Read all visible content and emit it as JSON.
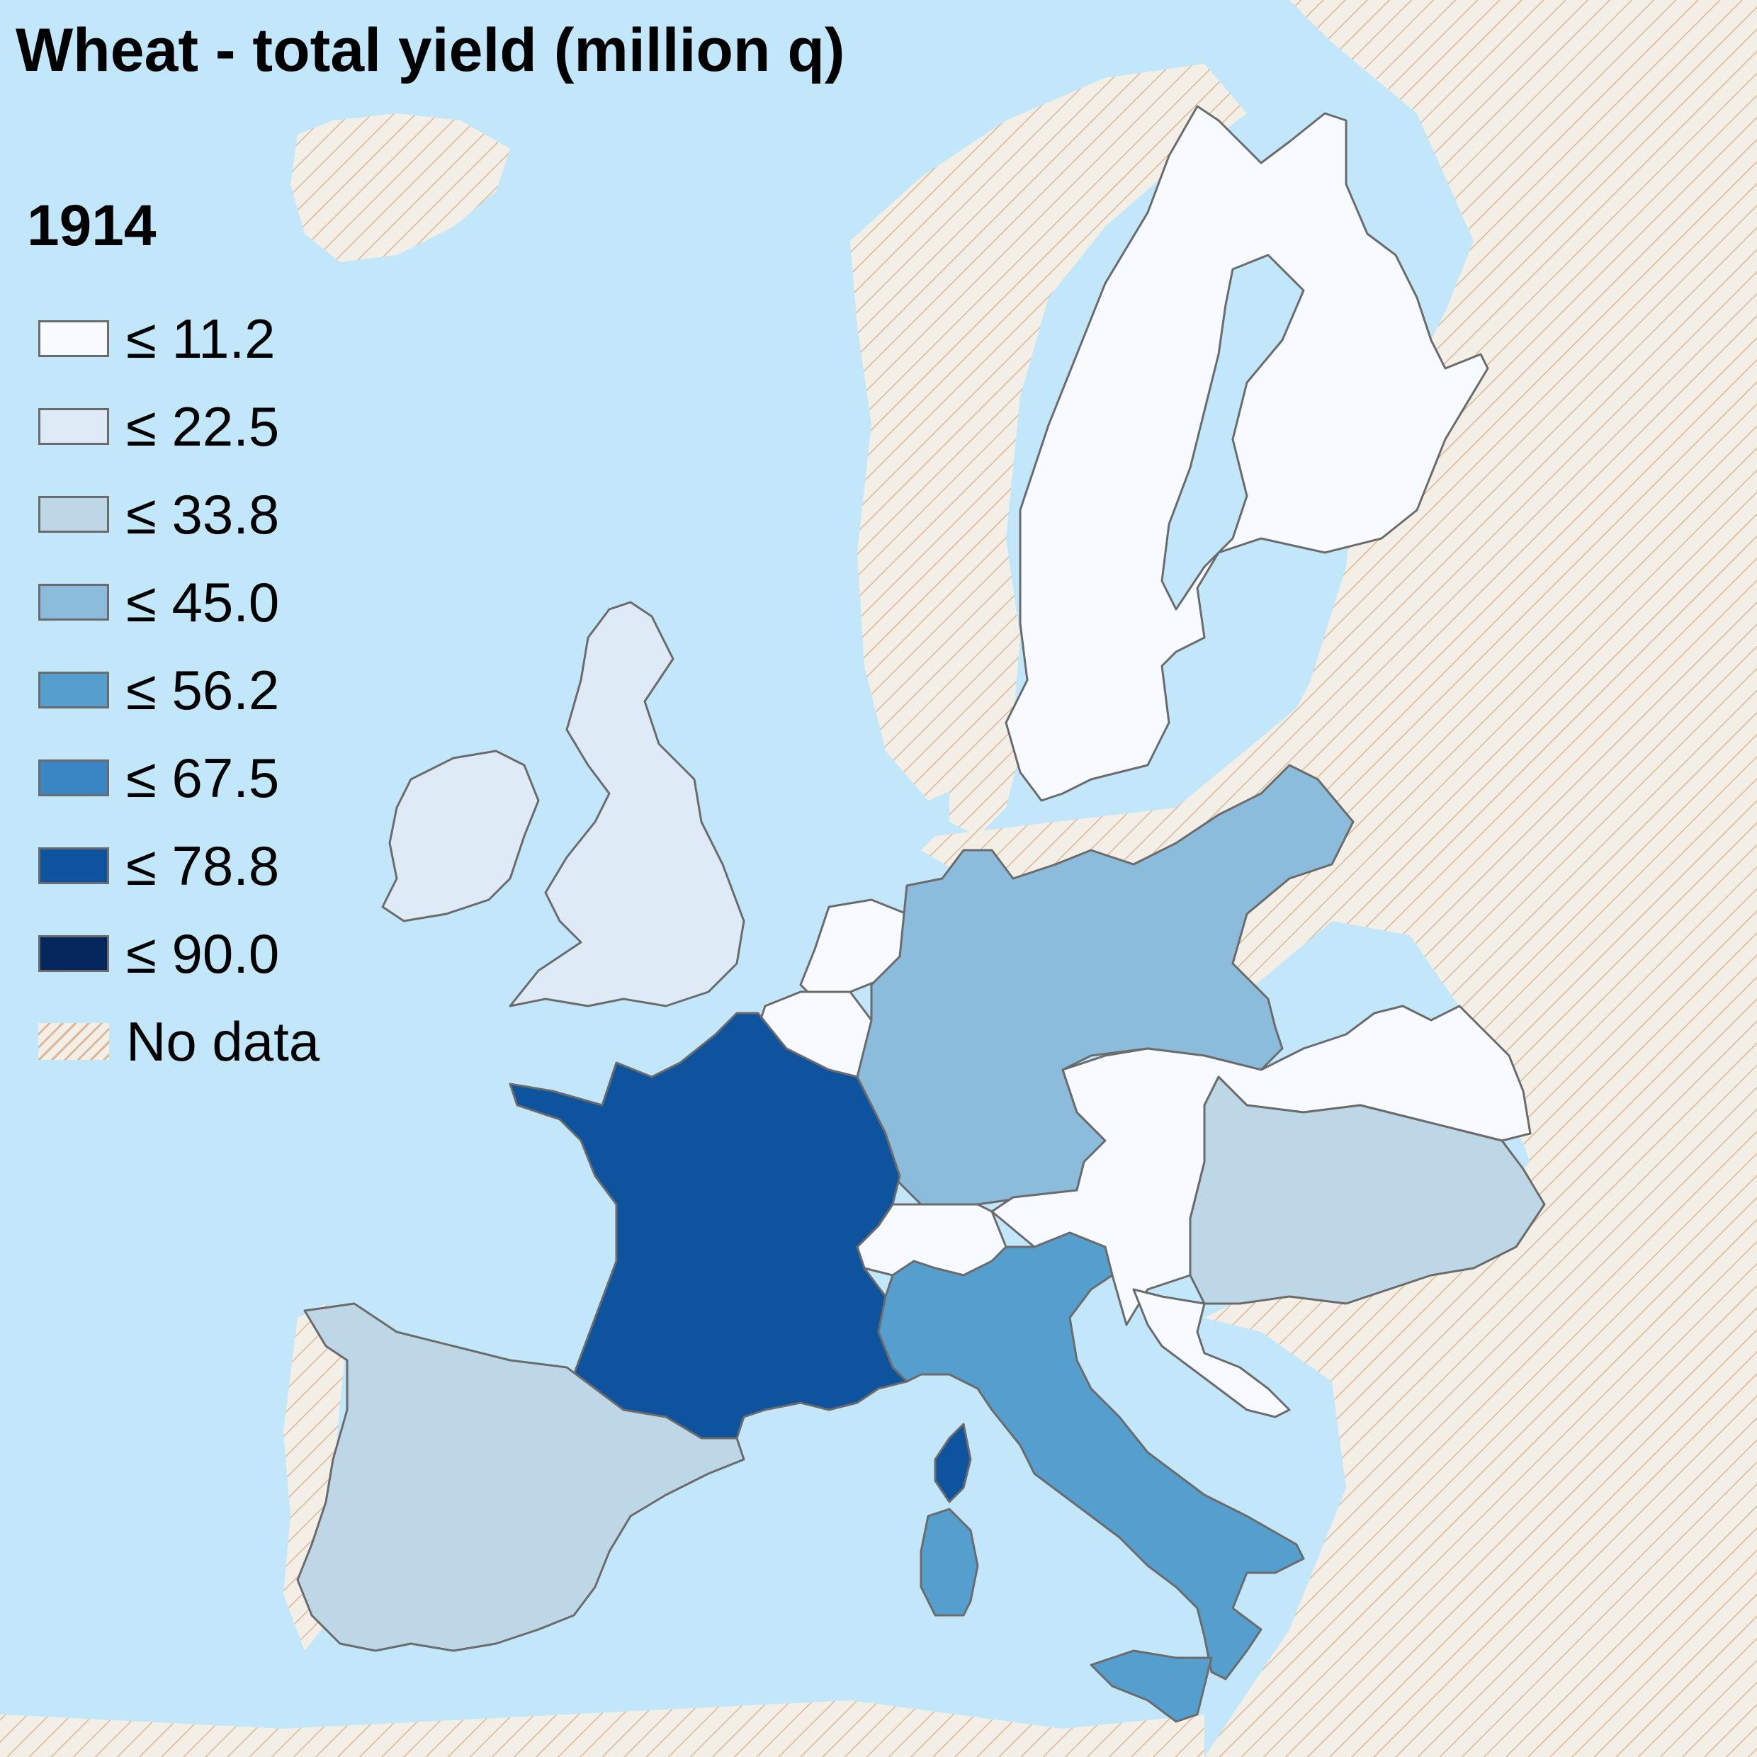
{
  "title": "Wheat - total yield (million q)",
  "year": "1914",
  "legend": {
    "items": [
      {
        "label": "≤ 11.2",
        "color": "#f7fbff"
      },
      {
        "label": "≤ 22.5",
        "color": "#deebf7"
      },
      {
        "label": "≤ 33.8",
        "color": "#bdd7e7"
      },
      {
        "label": "≤ 45.0",
        "color": "#8bbcdb"
      },
      {
        "label": "≤ 56.2",
        "color": "#559fce"
      },
      {
        "label": "≤ 67.5",
        "color": "#3a85c4"
      },
      {
        "label": "≤ 78.8",
        "color": "#0d539e"
      },
      {
        "label": "≤ 90.0",
        "color": "#04265c"
      }
    ],
    "no_data_label": "No data"
  },
  "colors": {
    "sea": "#c2e7fb",
    "no_data_fill": "#f3efe6",
    "no_data_hatch": "#d9b89a",
    "border": "#6b6b6b"
  },
  "regions": [
    {
      "name": "sweden-norway-finland",
      "class": "≤ 11.2"
    },
    {
      "name": "united-kingdom-ireland",
      "class": "≤ 22.5"
    },
    {
      "name": "netherlands",
      "class": "≤ 11.2"
    },
    {
      "name": "belgium",
      "class": "≤ 11.2"
    },
    {
      "name": "germany",
      "class": "≤ 45.0"
    },
    {
      "name": "austria",
      "class": "≤ 11.2"
    },
    {
      "name": "switzerland",
      "class": "≤ 11.2"
    },
    {
      "name": "hungary",
      "class": "≤ 33.8"
    },
    {
      "name": "france",
      "class": "≤ 78.8"
    },
    {
      "name": "corsica",
      "class": "≤ 78.8"
    },
    {
      "name": "spain",
      "class": "≤ 33.8"
    },
    {
      "name": "italy",
      "class": "≤ 56.2"
    },
    {
      "name": "sardinia",
      "class": "≤ 56.2"
    },
    {
      "name": "sicily",
      "class": "≤ 56.2"
    },
    {
      "name": "croatia-dalmatia",
      "class": "≤ 11.2"
    }
  ]
}
